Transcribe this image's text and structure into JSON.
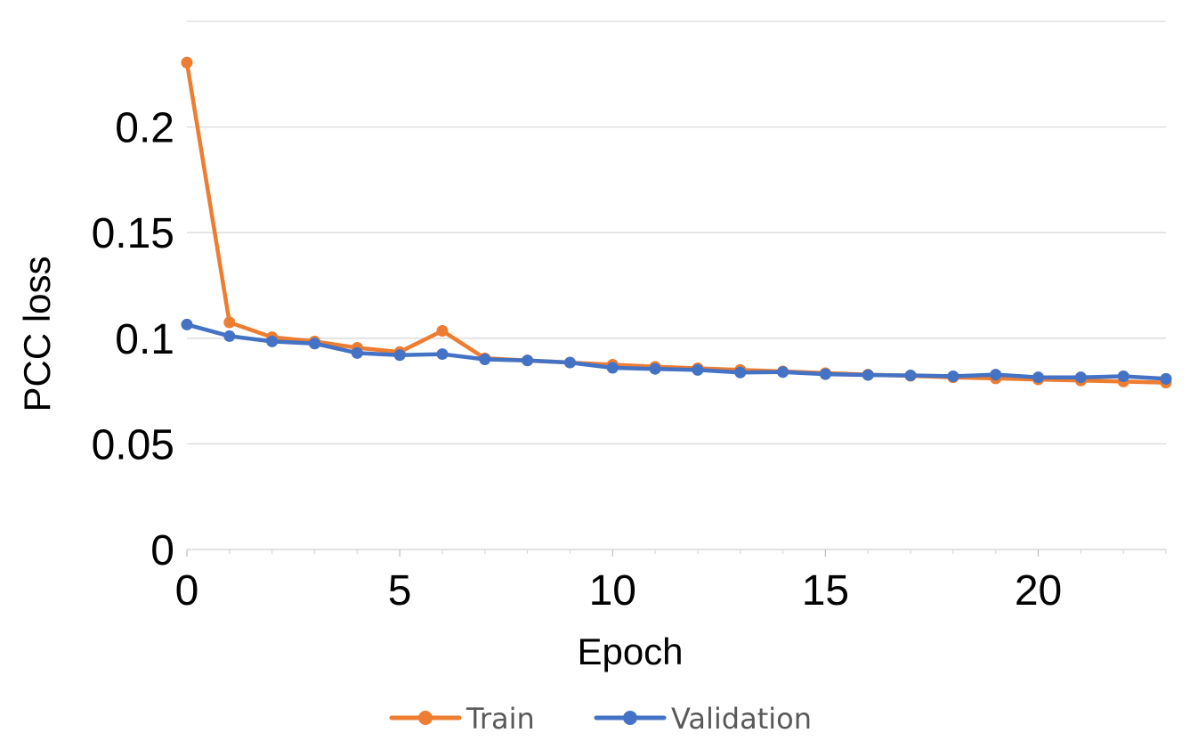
{
  "chart_data": {
    "type": "line",
    "title": "",
    "xlabel": "Epoch",
    "ylabel": "PCC loss",
    "xlim": [
      0,
      23
    ],
    "ylim": [
      0,
      0.25
    ],
    "x_ticks": [
      0,
      5,
      10,
      15,
      20
    ],
    "x_tick_labels": [
      "0",
      "5",
      "10",
      "15",
      "20"
    ],
    "y_ticks": [
      0,
      0.05,
      0.1,
      0.15,
      0.2
    ],
    "y_tick_labels": [
      "0",
      "0.05",
      "0.1",
      "0.15",
      "0.2"
    ],
    "grid": "horizontal",
    "legend_position": "bottom",
    "x": [
      0,
      1,
      2,
      3,
      4,
      5,
      6,
      7,
      8,
      9,
      10,
      11,
      12,
      13,
      14,
      15,
      16,
      17,
      18,
      19,
      20,
      21,
      22,
      23
    ],
    "series": [
      {
        "name": "Train",
        "color": "#ED7D31",
        "values": [
          0.2305,
          0.1075,
          0.1005,
          0.0985,
          0.0955,
          0.0935,
          0.1035,
          0.0905,
          0.0895,
          0.0885,
          0.0875,
          0.0865,
          0.0858,
          0.085,
          0.0843,
          0.0835,
          0.0828,
          0.0822,
          0.0815,
          0.081,
          0.0805,
          0.08,
          0.0795,
          0.079
        ]
      },
      {
        "name": "Validation",
        "color": "#4472C4",
        "values": [
          0.1065,
          0.101,
          0.0985,
          0.0975,
          0.093,
          0.092,
          0.0925,
          0.09,
          0.0895,
          0.0885,
          0.086,
          0.0855,
          0.085,
          0.0838,
          0.084,
          0.083,
          0.0826,
          0.0824,
          0.082,
          0.0828,
          0.0815,
          0.0815,
          0.082,
          0.0808
        ]
      }
    ]
  }
}
